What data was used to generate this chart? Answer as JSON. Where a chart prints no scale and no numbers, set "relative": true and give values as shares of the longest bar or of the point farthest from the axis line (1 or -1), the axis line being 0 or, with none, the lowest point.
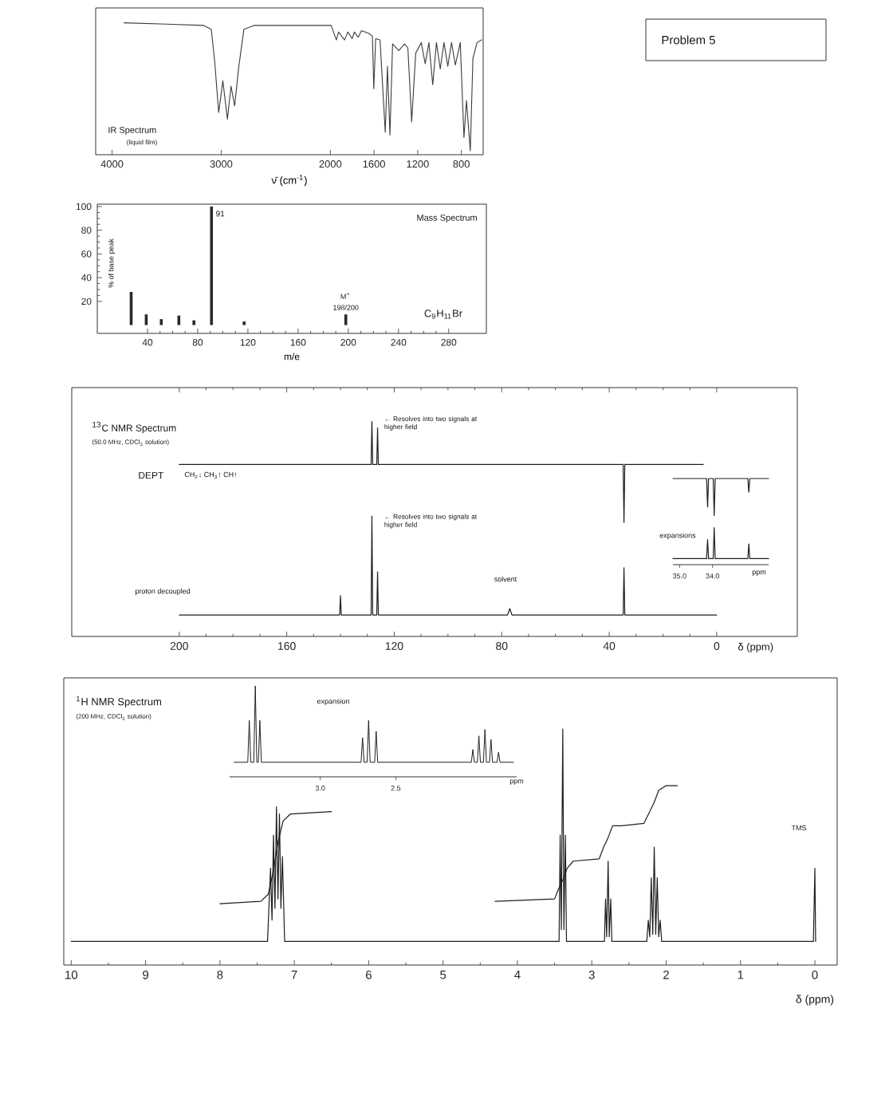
{
  "chart_data": [
    {
      "type": "line",
      "title": "IR Spectrum",
      "subtitle": "(liquid film)",
      "xlabel": "ν̄ (cm$^{-1}$)",
      "relative": true,
      "color": "#3c3c3c",
      "x": [
        3890,
        3500,
        3160,
        3091,
        3060,
        3023,
        2985,
        2943,
        2910,
        2877,
        2840,
        2792,
        2700,
        2300,
        1993,
        1945,
        1925,
        1870,
        1840,
        1800,
        1780,
        1745,
        1715,
        1650,
        1615,
        1602,
        1585,
        1545,
        1497,
        1477,
        1454,
        1430,
        1373,
        1321,
        1290,
        1255,
        1218,
        1167,
        1131,
        1097,
        1062,
        1028,
        993,
        959,
        924,
        890,
        855,
        810,
        776,
        753,
        718,
        694,
        656,
        614
      ],
      "values": [
        1.0,
        0.99,
        0.98,
        0.95,
        0.71,
        0.32,
        0.56,
        0.27,
        0.52,
        0.37,
        0.66,
        0.95,
        0.98,
        0.98,
        0.98,
        0.87,
        0.93,
        0.87,
        0.93,
        0.88,
        0.93,
        0.89,
        0.94,
        0.92,
        0.9,
        0.5,
        0.88,
        0.87,
        0.17,
        0.67,
        0.15,
        0.84,
        0.79,
        0.84,
        0.81,
        0.25,
        0.77,
        0.85,
        0.69,
        0.85,
        0.53,
        0.85,
        0.65,
        0.85,
        0.67,
        0.85,
        0.68,
        0.85,
        0.13,
        0.41,
        0.03,
        0.73,
        0.85,
        0.87
      ],
      "xlim": [
        4150,
        600
      ],
      "xticks": [
        4000,
        3000,
        2000,
        1600,
        1200,
        800
      ]
    },
    {
      "type": "other",
      "title": "Problem 5"
    },
    {
      "type": "bar",
      "title": "Mass Spectrum",
      "xlabel": "m/e",
      "ylabel": "% of base peak",
      "color": "#2a2a2a",
      "x": [
        27,
        39,
        51,
        65,
        77,
        91,
        117,
        198
      ],
      "values": [
        28,
        9,
        5,
        8,
        4,
        100,
        3,
        9
      ],
      "xlim": [
        0,
        310
      ],
      "ylim": [
        -7,
        102
      ],
      "xticks": [
        40,
        80,
        120,
        160,
        200,
        240,
        280
      ],
      "yticks": [
        20,
        40,
        60,
        80,
        100
      ],
      "annotations": [
        {
          "text": "91",
          "x": 91,
          "y": 100
        },
        "M$^{+·}$",
        {
          "text": "198/200",
          "x": 198,
          "y": 9
        },
        "C$_{9}$H$_{11}$Br"
      ]
    },
    {
      "type": "line",
      "title": "$^{13}$C NMR Spectrum",
      "subtitle": "(50.0 MHz, CDCl$_{3}$ solution)",
      "xlabel": "δ (ppm)",
      "relative": true,
      "series": [
        {
          "name": "DEPT",
          "color": "#1e1e1e",
          "x": [
            200,
            128.6,
            128.3,
            128.0,
            126.5,
            126.2,
            125.9,
            34.8,
            34.5,
            34.2,
            5
          ],
          "values": [
            0.8,
            0.8,
            1,
            0.8,
            0.8,
            0.97,
            0.8,
            0.8,
            0.53,
            0.8,
            0.8
          ]
        },
        {
          "name": "proton decoupled",
          "color": "#1e1e1e",
          "x": [
            200,
            140.3,
            140,
            139.7,
            128.6,
            128.3,
            128.0,
            126.5,
            126.2,
            125.9,
            77.8,
            77,
            76.2,
            34.8,
            34.5,
            34.2,
            0
          ],
          "values": [
            0.1,
            0.1,
            0.19,
            0.1,
            0.1,
            0.56,
            0.1,
            0.1,
            0.3,
            0.1,
            0.1,
            0.13,
            0.1,
            0.1,
            0.32,
            0.1,
            0.1
          ]
        }
      ],
      "xlim": [
        240,
        -30
      ],
      "xticks": [
        200,
        160,
        120,
        80,
        40,
        0
      ],
      "annotations": [
        {
          "text": "← Resolves into two signals at higher field",
          "x": 128.3,
          "y": 1
        },
        {
          "text": "← Resolves into two signals at higher field",
          "x": 128.3,
          "y": 0.56
        },
        "CH$_{2}$↓ CH$_{3}$↑ CH↑",
        "solvent"
      ]
    },
    {
      "type": "line",
      "title": "expansions",
      "xlabel": "ppm",
      "relative": true,
      "series": [
        {
          "color": "#1e1e1e",
          "x": [
            35.2,
            34.18,
            34.15,
            34.12,
            33.98,
            33.95,
            33.92,
            32.93,
            32.9,
            32.87,
            32.3
          ],
          "values": [
            1,
            1,
            0.67,
            1,
            1,
            0.57,
            1,
            1,
            0.84,
            1,
            1
          ]
        },
        {
          "color": "#1e1e1e",
          "x": [
            35.2,
            34.18,
            34.15,
            34.12,
            33.98,
            33.95,
            33.92,
            32.93,
            32.9,
            32.87,
            32.3
          ],
          "values": [
            0.07,
            0.07,
            0.29,
            0.07,
            0.07,
            0.43,
            0.07,
            0.07,
            0.24,
            0.07,
            0.07
          ]
        }
      ],
      "xlim": [
        35.2,
        32.3
      ],
      "xticks": [
        {
          "value": 35.0,
          "label": "35.0"
        },
        {
          "value": 34.0,
          "label": "34.0"
        }
      ]
    },
    {
      "type": "line",
      "title": "$^{1}$H NMR Spectrum",
      "subtitle": "(200 MHz, CDCl$_{3}$ solution)",
      "xlabel": "δ (ppm)",
      "relative": true,
      "series": [
        {
          "color": "#1e1e1e",
          "x": [
            10.0,
            7.36,
            7.32,
            7.3,
            7.28,
            7.26,
            7.24,
            7.22,
            7.2,
            7.18,
            7.16,
            7.13,
            3.44,
            3.425,
            3.41,
            3.39,
            3.375,
            3.355,
            3.34,
            2.83,
            2.815,
            2.8,
            2.78,
            2.765,
            2.745,
            2.73,
            2.26,
            2.24,
            2.22,
            2.2,
            2.18,
            2.16,
            2.14,
            2.12,
            2.1,
            2.08,
            2.06,
            0.02,
            0.0,
            -0.01
          ],
          "values": [
            0.1,
            0.1,
            0.41,
            0.19,
            0.55,
            0.24,
            0.67,
            0.28,
            0.64,
            0.24,
            0.46,
            0.1,
            0.1,
            0.55,
            0.15,
            1.0,
            0.15,
            0.55,
            0.1,
            0.1,
            0.28,
            0.12,
            0.44,
            0.12,
            0.28,
            0.1,
            0.1,
            0.19,
            0.12,
            0.37,
            0.13,
            0.5,
            0.13,
            0.37,
            0.12,
            0.19,
            0.1,
            0.1,
            0.41,
            0.1
          ]
        },
        {
          "color": "#1e1e1e",
          "x": [
            8.0,
            7.45,
            7.35,
            7.28,
            7.22,
            7.15,
            7.05,
            6.5,
            5.4,
            4.3,
            3.5,
            3.45,
            3.39,
            3.33,
            3.25,
            2.9,
            2.84,
            2.78,
            2.72,
            2.6,
            2.3,
            2.22,
            2.16,
            2.1,
            2.0,
            1.85
          ],
          "values": [
            0.26,
            0.27,
            0.3,
            0.4,
            0.52,
            0.61,
            0.64,
            0.65,
            null,
            0.27,
            0.28,
            0.32,
            0.36,
            0.41,
            0.44,
            0.45,
            0.5,
            0.54,
            0.59,
            0.59,
            0.6,
            0.65,
            0.69,
            0.74,
            0.76,
            0.76
          ]
        }
      ],
      "xlim": [
        10.1,
        -0.3
      ],
      "xticks": [
        10,
        9,
        8,
        7,
        6,
        5,
        4,
        3,
        2,
        1,
        0
      ],
      "annotations": [
        "TMS"
      ]
    },
    {
      "type": "line",
      "title": "expansion",
      "xlabel": "ppm",
      "relative": true,
      "color": "#1e1e1e",
      "x": [
        3.57,
        3.48,
        3.47,
        3.46,
        3.44,
        3.43,
        3.42,
        3.41,
        3.4,
        3.39,
        2.73,
        2.72,
        2.71,
        2.69,
        2.68,
        2.67,
        2.64,
        2.63,
        2.62,
        2.0,
        1.99,
        1.98,
        1.96,
        1.95,
        1.94,
        1.92,
        1.91,
        1.9,
        1.88,
        1.87,
        1.86,
        1.83,
        1.82,
        1.81,
        1.72
      ],
      "values": [
        0.16,
        0.16,
        0.62,
        0.16,
        0.16,
        1,
        0.16,
        0.16,
        0.62,
        0.16,
        0.16,
        0.43,
        0.16,
        0.16,
        0.62,
        0.16,
        0.16,
        0.5,
        0.16,
        0.16,
        0.3,
        0.16,
        0.16,
        0.45,
        0.16,
        0.16,
        0.52,
        0.16,
        0.16,
        0.41,
        0.16,
        0.16,
        0.27,
        0.16,
        0.16
      ],
      "xlim": [
        3.6,
        1.7
      ],
      "xticks": [
        {
          "value": 3.0,
          "label": "3.0"
        },
        {
          "value": 2.5,
          "label": "2.5"
        }
      ]
    }
  ]
}
